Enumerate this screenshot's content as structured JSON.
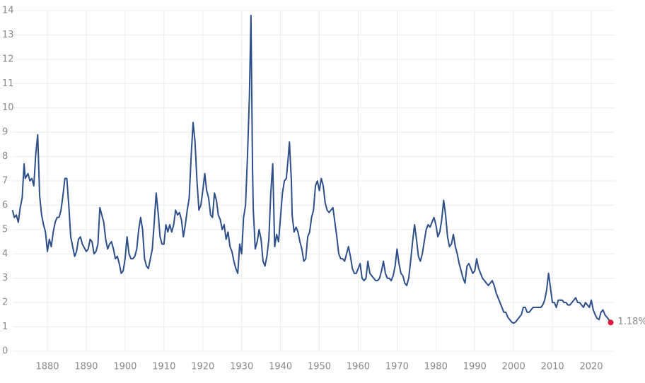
{
  "chart_data": {
    "type": "line",
    "xlim": [
      1871,
      2026
    ],
    "ylim": [
      0,
      14
    ],
    "xticks": [
      1880,
      1890,
      1900,
      1910,
      1920,
      1930,
      1940,
      1950,
      1960,
      1970,
      1980,
      1990,
      2000,
      2010,
      2020
    ],
    "yticks": [
      0,
      1,
      2,
      3,
      4,
      5,
      6,
      7,
      8,
      9,
      10,
      11,
      12,
      13,
      14
    ],
    "grid": true,
    "series": [
      {
        "color": "#2c4f8a",
        "x": [
          1871,
          1871.5,
          1872,
          1872.5,
          1873,
          1873.5,
          1874,
          1874.3,
          1875,
          1875.5,
          1876,
          1876.5,
          1877,
          1877.5,
          1878,
          1878.5,
          1879,
          1879.5,
          1880,
          1880.5,
          1881,
          1881.5,
          1882,
          1882.5,
          1883,
          1883.5,
          1884,
          1884.5,
          1885,
          1885.5,
          1886,
          1886.5,
          1887,
          1887.5,
          1888,
          1888.5,
          1889,
          1890,
          1890.5,
          1891,
          1891.5,
          1892,
          1892.5,
          1893,
          1893.5,
          1894,
          1894.5,
          1895,
          1895.5,
          1896,
          1896.5,
          1897,
          1897.5,
          1898,
          1898.5,
          1899,
          1899.5,
          1900,
          1900.5,
          1901,
          1901.5,
          1902,
          1902.5,
          1903,
          1903.5,
          1904,
          1904.5,
          1905,
          1905.5,
          1906,
          1906.5,
          1907,
          1907.5,
          1908,
          1908.5,
          1909,
          1909.5,
          1910,
          1910.5,
          1911,
          1911.5,
          1912,
          1912.5,
          1913,
          1913.5,
          1914,
          1914.5,
          1915,
          1915.5,
          1916,
          1916.5,
          1917,
          1917.5,
          1918,
          1918.5,
          1919,
          1919.5,
          1920,
          1920.5,
          1921,
          1921.5,
          1922,
          1922.5,
          1923,
          1923.5,
          1924,
          1924.5,
          1925,
          1925.5,
          1926,
          1926.5,
          1927,
          1927.5,
          1928,
          1928.5,
          1929,
          1929.5,
          1930,
          1930.5,
          1931,
          1931.5,
          1932,
          1932.4,
          1932.8,
          1933,
          1933.5,
          1934,
          1934.5,
          1935,
          1935.5,
          1936,
          1936.5,
          1937,
          1937.5,
          1938,
          1938.5,
          1939,
          1939.5,
          1940,
          1940.5,
          1941,
          1941.5,
          1942,
          1942.3,
          1942.8,
          1943,
          1943.5,
          1944,
          1944.5,
          1945,
          1945.5,
          1946,
          1946.5,
          1947,
          1947.5,
          1948,
          1948.5,
          1949,
          1949.5,
          1950,
          1950.5,
          1951,
          1951.5,
          1952,
          1952.5,
          1953,
          1953.5,
          1954,
          1954.5,
          1955,
          1955.5,
          1956,
          1956.5,
          1957,
          1957.5,
          1958,
          1958.5,
          1959,
          1959.5,
          1960,
          1960.5,
          1961,
          1961.5,
          1962,
          1962.5,
          1963,
          1963.5,
          1964,
          1964.5,
          1965,
          1965.5,
          1966,
          1966.5,
          1967,
          1967.5,
          1968,
          1968.5,
          1969,
          1969.5,
          1970,
          1970.5,
          1971,
          1971.5,
          1972,
          1972.5,
          1973,
          1973.5,
          1974,
          1974.5,
          1975,
          1975.5,
          1976,
          1976.5,
          1977,
          1977.5,
          1978,
          1978.5,
          1979,
          1979.5,
          1980,
          1980.5,
          1981,
          1981.5,
          1982,
          1982.5,
          1983,
          1983.5,
          1984,
          1984.5,
          1985,
          1985.5,
          1986,
          1986.5,
          1987,
          1987.5,
          1988,
          1988.5,
          1989,
          1989.5,
          1990,
          1990.5,
          1991,
          1991.5,
          1992,
          1992.5,
          1993,
          1993.5,
          1994,
          1994.5,
          1995,
          1995.5,
          1996,
          1996.5,
          1997,
          1997.5,
          1998,
          1998.5,
          1999,
          1999.5,
          2000,
          2000.5,
          2001,
          2001.5,
          2002,
          2002.5,
          2003,
          2003.5,
          2004,
          2004.5,
          2005,
          2005.5,
          2006,
          2006.5,
          2007,
          2007.5,
          2008,
          2008.5,
          2009,
          2009.5,
          2010,
          2010.5,
          2011,
          2011.5,
          2012,
          2012.5,
          2013,
          2013.5,
          2014,
          2014.5,
          2015,
          2015.5,
          2016,
          2016.5,
          2017,
          2017.5,
          2018,
          2018.5,
          2019,
          2019.5,
          2020,
          2020.5,
          2021,
          2021.5,
          2022,
          2022.5,
          2023,
          2023.5,
          2024,
          2024.5,
          2025
        ],
        "values": [
          5.8,
          5.5,
          5.6,
          5.3,
          5.9,
          6.3,
          7.7,
          7.1,
          7.3,
          7.0,
          7.1,
          6.8,
          8.1,
          8.9,
          6.4,
          5.6,
          5.2,
          4.9,
          4.1,
          4.6,
          4.3,
          4.9,
          5.3,
          5.5,
          5.5,
          5.8,
          6.4,
          7.1,
          7.1,
          6.0,
          4.7,
          4.3,
          3.9,
          4.1,
          4.6,
          4.7,
          4.4,
          4.1,
          4.2,
          4.6,
          4.5,
          4.0,
          4.1,
          4.4,
          5.9,
          5.6,
          5.3,
          4.6,
          4.2,
          4.4,
          4.5,
          4.2,
          3.8,
          3.9,
          3.6,
          3.2,
          3.3,
          3.8,
          4.7,
          4.0,
          3.8,
          3.8,
          3.9,
          4.2,
          5.0,
          5.5,
          5.0,
          3.8,
          3.5,
          3.4,
          3.8,
          4.2,
          5.3,
          6.5,
          5.7,
          4.7,
          4.4,
          4.4,
          5.2,
          4.9,
          5.2,
          4.9,
          5.2,
          5.8,
          5.6,
          5.7,
          5.4,
          4.7,
          5.2,
          5.8,
          6.3,
          8.0,
          9.4,
          8.6,
          7.0,
          5.8,
          6.0,
          6.6,
          7.3,
          6.6,
          6.3,
          5.6,
          5.5,
          6.5,
          6.2,
          5.6,
          5.4,
          5.0,
          5.2,
          4.6,
          4.9,
          4.3,
          4.1,
          3.7,
          3.4,
          3.2,
          4.4,
          4.0,
          5.5,
          6.0,
          8.0,
          10.5,
          13.8,
          7.5,
          5.8,
          4.2,
          4.5,
          5.0,
          4.6,
          3.7,
          3.5,
          3.9,
          4.6,
          6.5,
          7.7,
          4.3,
          4.8,
          4.5,
          5.5,
          6.5,
          7.0,
          7.1,
          8.0,
          8.6,
          7.0,
          5.6,
          4.9,
          5.1,
          4.9,
          4.5,
          4.2,
          3.7,
          3.8,
          4.7,
          4.9,
          5.5,
          5.8,
          6.8,
          7.0,
          6.6,
          7.1,
          6.8,
          6.1,
          5.8,
          5.7,
          5.8,
          5.9,
          5.3,
          4.7,
          4.0,
          3.8,
          3.8,
          3.7,
          4.0,
          4.3,
          3.9,
          3.4,
          3.2,
          3.2,
          3.4,
          3.6,
          3.0,
          2.9,
          3.0,
          3.7,
          3.2,
          3.1,
          3.0,
          2.9,
          2.9,
          3.0,
          3.3,
          3.7,
          3.2,
          3.0,
          3.0,
          2.9,
          3.1,
          3.5,
          4.2,
          3.6,
          3.2,
          3.1,
          2.8,
          2.7,
          3.0,
          3.7,
          4.5,
          5.2,
          4.6,
          3.9,
          3.7,
          4.0,
          4.5,
          5.0,
          5.2,
          5.1,
          5.3,
          5.5,
          5.2,
          4.7,
          4.9,
          5.4,
          6.2,
          5.6,
          4.7,
          4.3,
          4.4,
          4.8,
          4.3,
          4.0,
          3.6,
          3.3,
          3.0,
          2.8,
          3.5,
          3.6,
          3.4,
          3.2,
          3.3,
          3.8,
          3.4,
          3.2,
          3.0,
          2.9,
          2.8,
          2.7,
          2.8,
          2.9,
          2.7,
          2.4,
          2.2,
          2.0,
          1.8,
          1.6,
          1.6,
          1.4,
          1.3,
          1.2,
          1.15,
          1.2,
          1.3,
          1.4,
          1.5,
          1.8,
          1.8,
          1.6,
          1.6,
          1.7,
          1.8,
          1.8,
          1.8,
          1.8,
          1.8,
          1.9,
          2.1,
          2.5,
          3.2,
          2.6,
          2.0,
          2.0,
          1.8,
          2.1,
          2.1,
          2.1,
          2.0,
          2.0,
          1.9,
          1.9,
          2.0,
          2.1,
          2.2,
          2.0,
          2.0,
          1.9,
          1.8,
          2.0,
          1.9,
          1.8,
          2.1,
          1.7,
          1.5,
          1.35,
          1.3,
          1.6,
          1.7,
          1.5,
          1.4,
          1.3,
          1.18
        ]
      }
    ],
    "annotations": [
      {
        "x": 2025,
        "y": 1.18,
        "label": "1.18%",
        "color": "#e0193a"
      }
    ]
  }
}
